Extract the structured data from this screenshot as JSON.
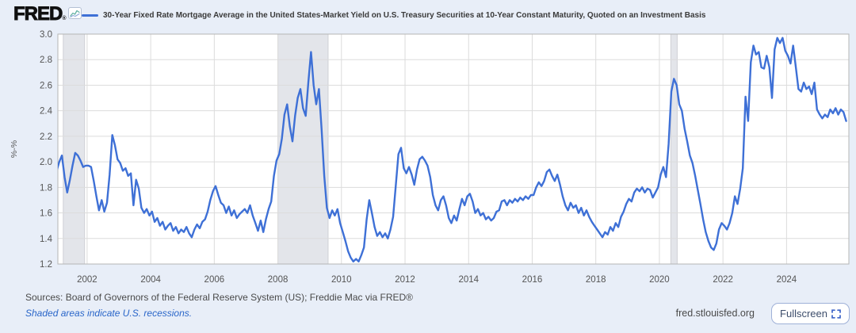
{
  "header": {
    "logo_text": "FRED",
    "logo_reg": "®",
    "series_title": "30-Year Fixed Rate Mortgage Average in the United States-Market Yield on U.S. Treasury Securities at 10-Year Constant Maturity, Quoted on an Investment Basis"
  },
  "footer": {
    "sources": "Sources: Board of Governors of the Federal Reserve System (US); Freddie Mac via FRED®",
    "recession_note": "Shaded areas indicate U.S. recessions.",
    "site": "fred.stlouisfed.org",
    "fullscreen_label": "Fullscreen"
  },
  "colors": {
    "canvas_bg": "#e8eef8",
    "plot_bg": "#ffffff",
    "line": "#3e70d6",
    "grid": "#dcdcdc",
    "border": "#b5b5b5",
    "recession_fill": "#e3e5ea",
    "recession_edge": "#cfd0d6",
    "tick_text": "#545454",
    "link": "#2a66c9"
  },
  "chart_data": {
    "type": "line",
    "title": "30-Year Fixed Rate Mortgage Average in the United States-Market Yield on U.S. Treasury Securities at 10-Year Constant Maturity, Quoted on an Investment Basis",
    "xlabel": "",
    "ylabel": "%-%",
    "ylim": [
      1.2,
      3.0
    ],
    "xlim": [
      2001.08,
      2025.96
    ],
    "yticks": [
      "3.0",
      "2.8",
      "2.6",
      "2.4",
      "2.2",
      "2.0",
      "1.8",
      "1.6",
      "1.4",
      "1.2"
    ],
    "xticks": [
      2002,
      2004,
      2006,
      2008,
      2010,
      2012,
      2014,
      2016,
      2018,
      2020,
      2022,
      2024
    ],
    "grid": true,
    "legend_position": "top",
    "frequency": "monthly",
    "start_year": 2001,
    "start_month": 1,
    "recessions": [
      {
        "start": 2001.25,
        "end": 2001.92
      },
      {
        "start": 2008.0,
        "end": 2009.58
      },
      {
        "start": 2020.36,
        "end": 2020.56
      }
    ],
    "series": [
      {
        "name": "30-Year Fixed Rate Mortgage Average in the United States-Market Yield on U.S. Treasury Securities at 10-Year Constant Maturity, Quoted on an Investment Basis",
        "values": [
          1.93,
          2.0,
          2.05,
          1.88,
          1.76,
          1.86,
          1.97,
          2.07,
          2.05,
          2.01,
          1.96,
          1.97,
          1.97,
          1.96,
          1.85,
          1.73,
          1.62,
          1.7,
          1.61,
          1.68,
          1.9,
          2.21,
          2.13,
          2.02,
          1.99,
          1.93,
          1.95,
          1.89,
          1.91,
          1.66,
          1.86,
          1.79,
          1.64,
          1.6,
          1.63,
          1.58,
          1.61,
          1.53,
          1.56,
          1.5,
          1.53,
          1.47,
          1.5,
          1.52,
          1.46,
          1.49,
          1.44,
          1.47,
          1.45,
          1.49,
          1.44,
          1.41,
          1.47,
          1.51,
          1.48,
          1.53,
          1.55,
          1.61,
          1.7,
          1.77,
          1.81,
          1.74,
          1.68,
          1.66,
          1.6,
          1.65,
          1.58,
          1.62,
          1.56,
          1.59,
          1.61,
          1.63,
          1.6,
          1.66,
          1.58,
          1.52,
          1.46,
          1.54,
          1.45,
          1.55,
          1.63,
          1.69,
          1.89,
          2.01,
          2.06,
          2.18,
          2.37,
          2.45,
          2.28,
          2.16,
          2.36,
          2.5,
          2.57,
          2.42,
          2.36,
          2.62,
          2.86,
          2.6,
          2.45,
          2.57,
          2.26,
          1.89,
          1.64,
          1.56,
          1.62,
          1.58,
          1.63,
          1.52,
          1.45,
          1.38,
          1.3,
          1.25,
          1.22,
          1.24,
          1.22,
          1.27,
          1.33,
          1.55,
          1.7,
          1.6,
          1.49,
          1.42,
          1.45,
          1.41,
          1.44,
          1.4,
          1.47,
          1.57,
          1.81,
          2.06,
          2.11,
          1.95,
          1.91,
          1.96,
          1.9,
          1.82,
          1.94,
          2.02,
          2.04,
          2.01,
          1.97,
          1.88,
          1.74,
          1.66,
          1.62,
          1.7,
          1.73,
          1.66,
          1.56,
          1.52,
          1.58,
          1.54,
          1.63,
          1.71,
          1.66,
          1.73,
          1.75,
          1.69,
          1.6,
          1.63,
          1.58,
          1.6,
          1.55,
          1.57,
          1.54,
          1.56,
          1.61,
          1.62,
          1.69,
          1.7,
          1.66,
          1.7,
          1.68,
          1.71,
          1.69,
          1.72,
          1.7,
          1.73,
          1.71,
          1.74,
          1.74,
          1.8,
          1.84,
          1.81,
          1.85,
          1.92,
          1.94,
          1.89,
          1.85,
          1.9,
          1.82,
          1.73,
          1.66,
          1.62,
          1.68,
          1.64,
          1.66,
          1.6,
          1.64,
          1.58,
          1.62,
          1.57,
          1.53,
          1.5,
          1.47,
          1.44,
          1.41,
          1.45,
          1.43,
          1.49,
          1.46,
          1.52,
          1.49,
          1.57,
          1.61,
          1.67,
          1.71,
          1.69,
          1.76,
          1.79,
          1.77,
          1.8,
          1.76,
          1.79,
          1.78,
          1.72,
          1.76,
          1.8,
          1.9,
          1.96,
          1.88,
          2.14,
          2.55,
          2.65,
          2.6,
          2.45,
          2.4,
          2.26,
          2.16,
          2.05,
          1.99,
          1.89,
          1.78,
          1.67,
          1.55,
          1.45,
          1.38,
          1.33,
          1.31,
          1.36,
          1.47,
          1.52,
          1.5,
          1.47,
          1.52,
          1.6,
          1.73,
          1.67,
          1.79,
          1.95,
          2.51,
          2.32,
          2.78,
          2.91,
          2.84,
          2.86,
          2.74,
          2.73,
          2.83,
          2.74,
          2.5,
          2.88,
          2.97,
          2.93,
          2.97,
          2.87,
          2.83,
          2.77,
          2.91,
          2.74,
          2.57,
          2.55,
          2.62,
          2.57,
          2.59,
          2.53,
          2.62,
          2.41,
          2.37,
          2.34,
          2.37,
          2.35,
          2.41,
          2.38,
          2.42,
          2.37,
          2.41,
          2.39,
          2.32
        ]
      }
    ]
  }
}
